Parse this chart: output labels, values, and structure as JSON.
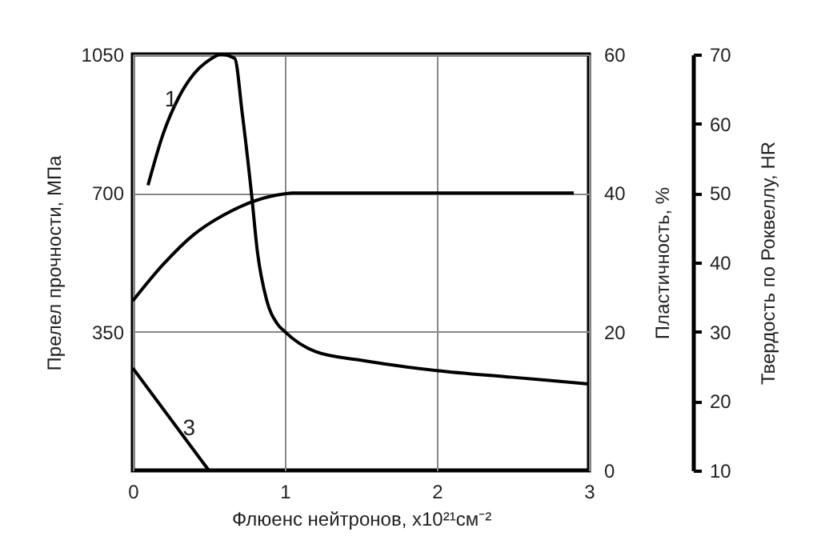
{
  "chart_data": {
    "type": "line",
    "xlabel": "Флюенс нейтронов, x10²¹см⁻²",
    "ylabel": "Прелел прочности, МПа",
    "y2label": "Пластичность, %",
    "y3label": "Твердость по Роквеллу, HR",
    "xlim": [
      0,
      3
    ],
    "xticks": [
      0,
      1,
      2,
      3
    ],
    "ylim": [
      0,
      1050
    ],
    "yticks": [
      350,
      700,
      1050
    ],
    "y2lim": [
      0,
      60
    ],
    "y2ticks": [
      0,
      20,
      40,
      60
    ],
    "y3lim": [
      10,
      70
    ],
    "y3ticks": [
      10,
      20,
      30,
      40,
      50,
      60,
      70
    ],
    "grid": true,
    "line_style": "solid",
    "series": [
      {
        "color": "#000000",
        "x": [
          0.1,
          0.2,
          0.3,
          0.4,
          0.5,
          0.58,
          0.67,
          0.72,
          0.78,
          0.82,
          0.88,
          0.95,
          1.0,
          1.2,
          1.5,
          2.0,
          2.5,
          3.0
        ],
        "values": [
          720,
          850,
          940,
          1000,
          1035,
          1050,
          1040,
          900,
          700,
          550,
          430,
          370,
          350,
          300,
          278,
          252,
          235,
          218
        ]
      },
      {
        "color": "#000000",
        "x": [
          0,
          0.2,
          0.4,
          0.6,
          0.8,
          1.0,
          1.05,
          2.9
        ],
        "values": [
          428,
          520,
          595,
          645,
          680,
          698,
          700,
          700
        ]
      },
      {
        "color": "#000000",
        "x": [
          0,
          0.5
        ],
        "values": [
          258,
          0
        ]
      }
    ],
    "annotations": [
      {
        "text": "1",
        "x": 0.25,
        "y": 935
      },
      {
        "text": "3",
        "x": 0.37,
        "y": 105
      }
    ]
  }
}
